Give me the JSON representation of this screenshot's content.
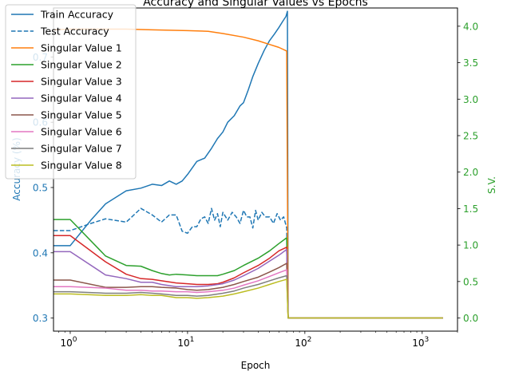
{
  "chart_data": {
    "type": "line",
    "title": "Accuracy and Singular Values vs Epochs",
    "xlabel": "Epoch",
    "ylabel_left": "Accuracy (%)",
    "ylabel_right": "S.V.",
    "x_scale": "log",
    "xlim": [
      0.72,
      2000
    ],
    "ylim_left": [
      0.28,
      0.775
    ],
    "ylim_right": [
      -0.18,
      4.25
    ],
    "x_ticks": [
      {
        "v": 1,
        "base": "10",
        "exp": "0"
      },
      {
        "v": 10,
        "base": "10",
        "exp": "1"
      },
      {
        "v": 100,
        "base": "10",
        "exp": "2"
      },
      {
        "v": 1000,
        "base": "10",
        "exp": "3"
      }
    ],
    "y_ticks_left": [
      "0.3",
      "0.4",
      "0.5",
      "0.6",
      "0.7"
    ],
    "y_ticks_right": [
      "0.0",
      "0.5",
      "1.0",
      "1.5",
      "2.0",
      "2.5",
      "3.0",
      "3.5",
      "4.0"
    ],
    "left_color": "#1f77b4",
    "right_color": "#2ca02c",
    "legend_position": "upper-left",
    "series": [
      {
        "name": "Train Accuracy",
        "axis": "left",
        "color": "#1f77b4",
        "dash": "solid",
        "points": [
          [
            0.72,
            0.411
          ],
          [
            1,
            0.411
          ],
          [
            1.5,
            0.45
          ],
          [
            2,
            0.475
          ],
          [
            3,
            0.495
          ],
          [
            4,
            0.499
          ],
          [
            5,
            0.505
          ],
          [
            6,
            0.503
          ],
          [
            7,
            0.51
          ],
          [
            8,
            0.505
          ],
          [
            9,
            0.51
          ],
          [
            10,
            0.52
          ],
          [
            12,
            0.54
          ],
          [
            14,
            0.545
          ],
          [
            16,
            0.56
          ],
          [
            18,
            0.575
          ],
          [
            20,
            0.585
          ],
          [
            22,
            0.6
          ],
          [
            25,
            0.61
          ],
          [
            28,
            0.625
          ],
          [
            30,
            0.63
          ],
          [
            33,
            0.65
          ],
          [
            36,
            0.67
          ],
          [
            40,
            0.69
          ],
          [
            45,
            0.71
          ],
          [
            50,
            0.725
          ],
          [
            55,
            0.735
          ],
          [
            60,
            0.745
          ],
          [
            65,
            0.755
          ],
          [
            69,
            0.762
          ],
          [
            71,
            0.77
          ],
          [
            72,
            0.3
          ],
          [
            1500,
            0.3
          ]
        ]
      },
      {
        "name": "Test Accuracy",
        "axis": "left",
        "color": "#1f77b4",
        "dash": "dashed",
        "points": [
          [
            0.72,
            0.434
          ],
          [
            1,
            0.434
          ],
          [
            1.5,
            0.445
          ],
          [
            2,
            0.452
          ],
          [
            3,
            0.447
          ],
          [
            4,
            0.468
          ],
          [
            5,
            0.458
          ],
          [
            6,
            0.447
          ],
          [
            7,
            0.458
          ],
          [
            8,
            0.458
          ],
          [
            9,
            0.433
          ],
          [
            10,
            0.43
          ],
          [
            11,
            0.44
          ],
          [
            12,
            0.44
          ],
          [
            13,
            0.452
          ],
          [
            14,
            0.455
          ],
          [
            15,
            0.445
          ],
          [
            16,
            0.468
          ],
          [
            17,
            0.45
          ],
          [
            18,
            0.46
          ],
          [
            19,
            0.44
          ],
          [
            20,
            0.462
          ],
          [
            22,
            0.45
          ],
          [
            24,
            0.462
          ],
          [
            26,
            0.455
          ],
          [
            28,
            0.445
          ],
          [
            30,
            0.465
          ],
          [
            32,
            0.455
          ],
          [
            34,
            0.455
          ],
          [
            36,
            0.438
          ],
          [
            38,
            0.465
          ],
          [
            40,
            0.45
          ],
          [
            43,
            0.462
          ],
          [
            46,
            0.455
          ],
          [
            50,
            0.455
          ],
          [
            54,
            0.445
          ],
          [
            58,
            0.46
          ],
          [
            62,
            0.45
          ],
          [
            66,
            0.455
          ],
          [
            70,
            0.438
          ],
          [
            72,
            0.3
          ],
          [
            1500,
            0.3
          ]
        ]
      },
      {
        "name": "Singular Value 1",
        "axis": "right",
        "color": "#ff7f0e",
        "dash": "solid",
        "points": [
          [
            0.72,
            3.95
          ],
          [
            1,
            3.96
          ],
          [
            2,
            3.96
          ],
          [
            3,
            3.96
          ],
          [
            5,
            3.95
          ],
          [
            10,
            3.94
          ],
          [
            15,
            3.93
          ],
          [
            20,
            3.9
          ],
          [
            30,
            3.85
          ],
          [
            40,
            3.8
          ],
          [
            50,
            3.75
          ],
          [
            60,
            3.71
          ],
          [
            70,
            3.66
          ],
          [
            72,
            0.0
          ],
          [
            1500,
            0.0
          ]
        ]
      },
      {
        "name": "Singular Value 2",
        "axis": "right",
        "color": "#2ca02c",
        "dash": "solid",
        "points": [
          [
            0.72,
            1.35
          ],
          [
            1,
            1.35
          ],
          [
            2,
            0.85
          ],
          [
            3,
            0.72
          ],
          [
            4,
            0.71
          ],
          [
            5,
            0.65
          ],
          [
            6,
            0.61
          ],
          [
            7,
            0.59
          ],
          [
            8,
            0.6
          ],
          [
            10,
            0.59
          ],
          [
            12,
            0.58
          ],
          [
            15,
            0.58
          ],
          [
            18,
            0.58
          ],
          [
            20,
            0.6
          ],
          [
            25,
            0.65
          ],
          [
            30,
            0.72
          ],
          [
            40,
            0.82
          ],
          [
            50,
            0.92
          ],
          [
            60,
            1.02
          ],
          [
            70,
            1.1
          ],
          [
            72,
            0.0
          ],
          [
            1500,
            0.0
          ]
        ]
      },
      {
        "name": "Singular Value 3",
        "axis": "right",
        "color": "#d62728",
        "dash": "solid",
        "points": [
          [
            0.72,
            1.13
          ],
          [
            1,
            1.13
          ],
          [
            2,
            0.77
          ],
          [
            3,
            0.6
          ],
          [
            4,
            0.54
          ],
          [
            5,
            0.53
          ],
          [
            6,
            0.51
          ],
          [
            8,
            0.48
          ],
          [
            10,
            0.47
          ],
          [
            12,
            0.46
          ],
          [
            15,
            0.46
          ],
          [
            18,
            0.47
          ],
          [
            20,
            0.49
          ],
          [
            25,
            0.55
          ],
          [
            30,
            0.62
          ],
          [
            40,
            0.72
          ],
          [
            50,
            0.82
          ],
          [
            60,
            0.92
          ],
          [
            70,
            0.97
          ],
          [
            72,
            0.0
          ],
          [
            1500,
            0.0
          ]
        ]
      },
      {
        "name": "Singular Value 4",
        "axis": "right",
        "color": "#9467bd",
        "dash": "solid",
        "points": [
          [
            0.72,
            0.91
          ],
          [
            1,
            0.91
          ],
          [
            2,
            0.59
          ],
          [
            3,
            0.54
          ],
          [
            4,
            0.49
          ],
          [
            5,
            0.49
          ],
          [
            6,
            0.46
          ],
          [
            8,
            0.43
          ],
          [
            10,
            0.43
          ],
          [
            12,
            0.43
          ],
          [
            15,
            0.44
          ],
          [
            20,
            0.47
          ],
          [
            25,
            0.52
          ],
          [
            30,
            0.58
          ],
          [
            40,
            0.68
          ],
          [
            50,
            0.78
          ],
          [
            60,
            0.86
          ],
          [
            70,
            0.94
          ],
          [
            72,
            0.0
          ],
          [
            1500,
            0.0
          ]
        ]
      },
      {
        "name": "Singular Value 5",
        "axis": "right",
        "color": "#8c564b",
        "dash": "solid",
        "points": [
          [
            0.72,
            0.52
          ],
          [
            1,
            0.52
          ],
          [
            2,
            0.42
          ],
          [
            3,
            0.42
          ],
          [
            4,
            0.43
          ],
          [
            5,
            0.43
          ],
          [
            6,
            0.42
          ],
          [
            8,
            0.41
          ],
          [
            10,
            0.39
          ],
          [
            12,
            0.38
          ],
          [
            15,
            0.39
          ],
          [
            20,
            0.42
          ],
          [
            25,
            0.46
          ],
          [
            30,
            0.5
          ],
          [
            40,
            0.56
          ],
          [
            50,
            0.63
          ],
          [
            60,
            0.69
          ],
          [
            70,
            0.75
          ],
          [
            72,
            0.0
          ],
          [
            1500,
            0.0
          ]
        ]
      },
      {
        "name": "Singular Value 6",
        "axis": "right",
        "color": "#e377c2",
        "dash": "solid",
        "points": [
          [
            0.72,
            0.43
          ],
          [
            1,
            0.43
          ],
          [
            2,
            0.41
          ],
          [
            3,
            0.38
          ],
          [
            4,
            0.38
          ],
          [
            5,
            0.37
          ],
          [
            6,
            0.37
          ],
          [
            8,
            0.36
          ],
          [
            10,
            0.36
          ],
          [
            12,
            0.35
          ],
          [
            15,
            0.36
          ],
          [
            20,
            0.38
          ],
          [
            25,
            0.41
          ],
          [
            30,
            0.45
          ],
          [
            40,
            0.51
          ],
          [
            50,
            0.57
          ],
          [
            60,
            0.62
          ],
          [
            70,
            0.66
          ],
          [
            72,
            0.0
          ],
          [
            1500,
            0.0
          ]
        ]
      },
      {
        "name": "Singular Value 7",
        "axis": "right",
        "color": "#7f7f7f",
        "dash": "solid",
        "points": [
          [
            0.72,
            0.36
          ],
          [
            1,
            0.36
          ],
          [
            2,
            0.34
          ],
          [
            3,
            0.34
          ],
          [
            4,
            0.35
          ],
          [
            5,
            0.34
          ],
          [
            6,
            0.33
          ],
          [
            8,
            0.31
          ],
          [
            10,
            0.31
          ],
          [
            12,
            0.3
          ],
          [
            15,
            0.31
          ],
          [
            20,
            0.34
          ],
          [
            25,
            0.37
          ],
          [
            30,
            0.41
          ],
          [
            40,
            0.46
          ],
          [
            50,
            0.51
          ],
          [
            60,
            0.55
          ],
          [
            70,
            0.58
          ],
          [
            72,
            0.0
          ],
          [
            1500,
            0.0
          ]
        ]
      },
      {
        "name": "Singular Value 8",
        "axis": "right",
        "color": "#bcbd22",
        "dash": "solid",
        "points": [
          [
            0.72,
            0.33
          ],
          [
            1,
            0.33
          ],
          [
            2,
            0.31
          ],
          [
            3,
            0.31
          ],
          [
            4,
            0.32
          ],
          [
            5,
            0.31
          ],
          [
            6,
            0.31
          ],
          [
            8,
            0.28
          ],
          [
            10,
            0.28
          ],
          [
            12,
            0.27
          ],
          [
            15,
            0.28
          ],
          [
            20,
            0.3
          ],
          [
            25,
            0.33
          ],
          [
            30,
            0.36
          ],
          [
            40,
            0.41
          ],
          [
            50,
            0.46
          ],
          [
            60,
            0.5
          ],
          [
            70,
            0.53
          ],
          [
            72,
            0.0
          ],
          [
            1500,
            0.0
          ]
        ]
      }
    ]
  }
}
